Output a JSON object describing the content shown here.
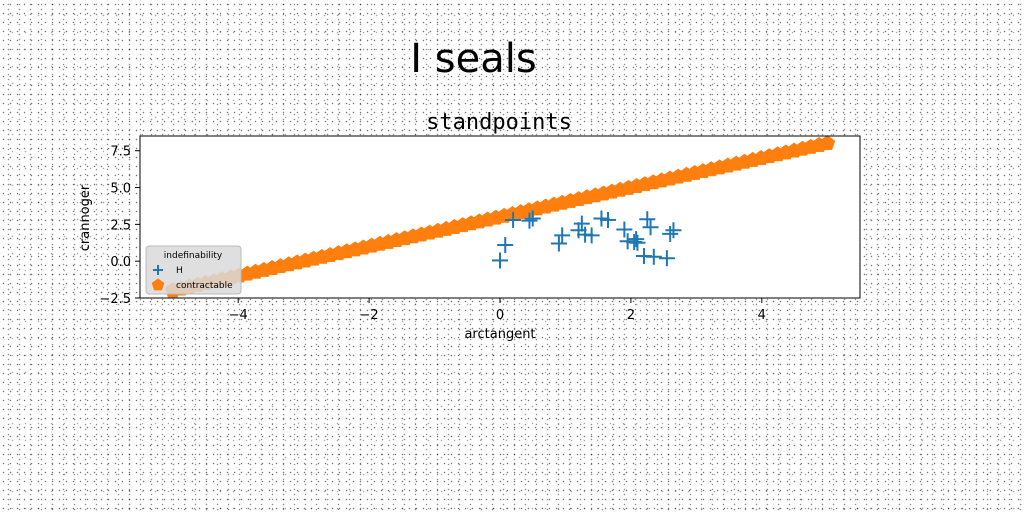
{
  "figure": {
    "suptitle": "I seals"
  },
  "chart_data": {
    "type": "scatter",
    "title": "standpoints",
    "xlabel": "arctangent",
    "ylabel": "crannoger",
    "xlim": [
      -5.5,
      5.5
    ],
    "ylim": [
      -2.5,
      8.5
    ],
    "xticks": [
      -4,
      -2,
      0,
      2,
      4
    ],
    "yticks": [
      -2.5,
      0.0,
      2.5,
      5.0,
      7.5
    ],
    "xtick_labels": [
      "−4",
      "−2",
      "0",
      "2",
      "4"
    ],
    "ytick_labels": [
      "−2.5",
      "0.0",
      "2.5",
      "5.0",
      "7.5"
    ],
    "grid": false,
    "legend": {
      "title": "indefinability",
      "position": "lower-left"
    },
    "series": [
      {
        "name": "H",
        "marker": "plus",
        "color": "#1f77b4",
        "points": [
          [
            0.0,
            0.05
          ],
          [
            0.08,
            1.1
          ],
          [
            0.2,
            2.8
          ],
          [
            0.45,
            2.75
          ],
          [
            0.5,
            2.9
          ],
          [
            0.9,
            1.2
          ],
          [
            0.95,
            1.75
          ],
          [
            1.2,
            2.1
          ],
          [
            1.25,
            2.55
          ],
          [
            1.3,
            1.8
          ],
          [
            1.4,
            1.75
          ],
          [
            1.55,
            2.9
          ],
          [
            1.65,
            2.8
          ],
          [
            1.9,
            2.15
          ],
          [
            1.95,
            1.35
          ],
          [
            2.05,
            1.3
          ],
          [
            2.08,
            1.5
          ],
          [
            2.1,
            1.25
          ],
          [
            2.2,
            0.35
          ],
          [
            2.25,
            2.85
          ],
          [
            2.3,
            2.3
          ],
          [
            2.35,
            0.3
          ],
          [
            2.55,
            0.2
          ],
          [
            2.6,
            1.85
          ],
          [
            2.65,
            2.1
          ]
        ]
      },
      {
        "name": "contractable",
        "marker": "pentagon",
        "color": "#ff7f0e",
        "line": {
          "x_start": -5.0,
          "x_end": 5.0,
          "count": 80,
          "slope": 1.0,
          "intercept": 3.0
        }
      }
    ]
  }
}
